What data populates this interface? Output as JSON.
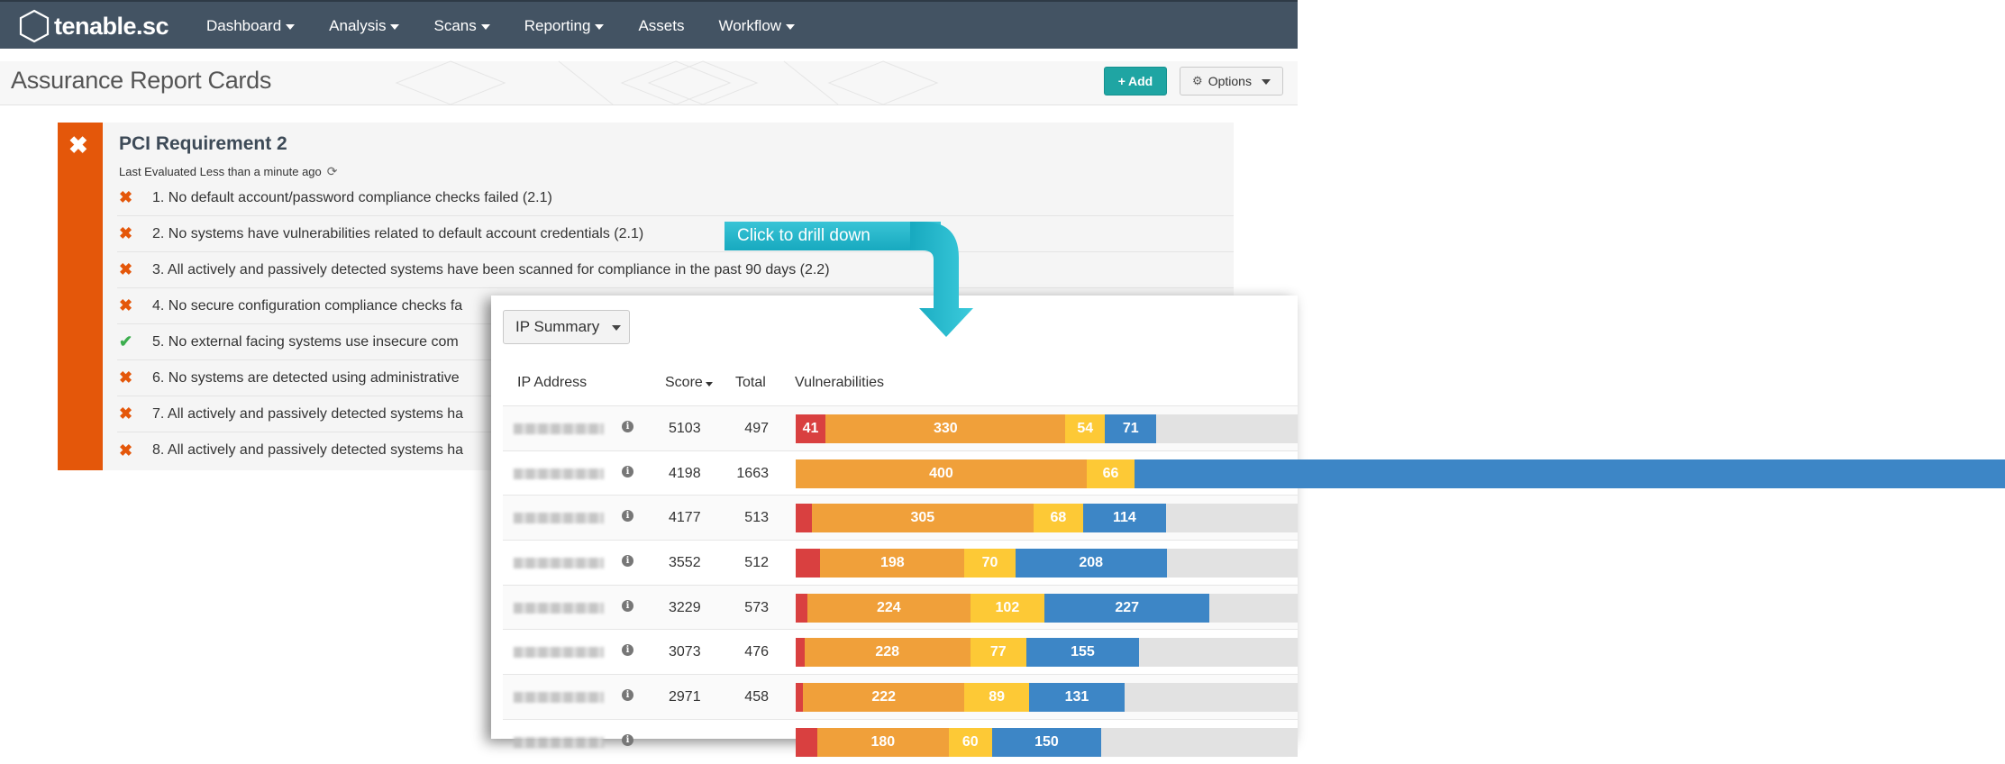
{
  "header": {
    "logo_text": "tenable.sc",
    "nav": [
      {
        "label": "Dashboard",
        "dropdown": true
      },
      {
        "label": "Analysis",
        "dropdown": true
      },
      {
        "label": "Scans",
        "dropdown": true
      },
      {
        "label": "Reporting",
        "dropdown": true
      },
      {
        "label": "Assets",
        "dropdown": false
      },
      {
        "label": "Workflow",
        "dropdown": true
      }
    ]
  },
  "page": {
    "title": "Assurance Report Cards",
    "add_label": "Add",
    "options_label": "Options"
  },
  "card": {
    "title": "PCI Requirement 2",
    "last_evaluated": "Last Evaluated Less than a minute ago",
    "requirements": [
      {
        "status": "fail",
        "text": "1. No default account/password compliance checks failed (2.1)"
      },
      {
        "status": "fail",
        "text": "2. No systems have vulnerabilities related to default account credentials (2.1)"
      },
      {
        "status": "fail",
        "text": "3. All actively and passively detected systems have been scanned for compliance in the past 90 days (2.2)"
      },
      {
        "status": "fail",
        "text": "4. No secure configuration compliance checks fa"
      },
      {
        "status": "pass",
        "text": "5. No external facing systems use insecure com"
      },
      {
        "status": "fail",
        "text": "6. No systems are detected using administrative"
      },
      {
        "status": "fail",
        "text": "7. All actively and passively detected systems ha"
      },
      {
        "status": "fail",
        "text": "8. All actively and passively detected systems ha"
      }
    ]
  },
  "callout": {
    "text": "Click to drill down"
  },
  "drilldown": {
    "tool_label": "IP Summary",
    "columns": {
      "ip": "IP Address",
      "score": "Score",
      "total": "Total",
      "vulns": "Vulnerabilities"
    },
    "colors": {
      "critical": "#d94040",
      "high": "#f0a03a",
      "medium": "#fdc936",
      "low": "#3d86c6",
      "info": "#e2e2e2"
    },
    "max_total": 690,
    "rows": [
      {
        "score": "5103",
        "total": "497",
        "segments": [
          {
            "level": "critical",
            "value": 41,
            "label": "41"
          },
          {
            "level": "high",
            "value": 330,
            "label": "330"
          },
          {
            "level": "medium",
            "value": 54,
            "label": "54"
          },
          {
            "level": "low",
            "value": 71,
            "label": "71"
          }
        ]
      },
      {
        "score": "4198",
        "total": "1663",
        "segments": [
          {
            "level": "critical",
            "value": 0,
            "label": ""
          },
          {
            "level": "high",
            "value": 400,
            "label": "400"
          },
          {
            "level": "medium",
            "value": 66,
            "label": "66"
          },
          {
            "level": "low",
            "value": 1197,
            "label": ""
          }
        ]
      },
      {
        "score": "4177",
        "total": "513",
        "segments": [
          {
            "level": "critical",
            "value": 22,
            "label": ""
          },
          {
            "level": "high",
            "value": 305,
            "label": "305"
          },
          {
            "level": "medium",
            "value": 68,
            "label": "68"
          },
          {
            "level": "low",
            "value": 114,
            "label": "114"
          }
        ]
      },
      {
        "score": "3552",
        "total": "512",
        "segments": [
          {
            "level": "critical",
            "value": 34,
            "label": ""
          },
          {
            "level": "high",
            "value": 198,
            "label": "198"
          },
          {
            "level": "medium",
            "value": 70,
            "label": "70"
          },
          {
            "level": "low",
            "value": 208,
            "label": "208"
          }
        ]
      },
      {
        "score": "3229",
        "total": "573",
        "segments": [
          {
            "level": "critical",
            "value": 16,
            "label": ""
          },
          {
            "level": "high",
            "value": 224,
            "label": "224"
          },
          {
            "level": "medium",
            "value": 102,
            "label": "102"
          },
          {
            "level": "low",
            "value": 227,
            "label": "227"
          }
        ]
      },
      {
        "score": "3073",
        "total": "476",
        "segments": [
          {
            "level": "critical",
            "value": 12,
            "label": ""
          },
          {
            "level": "high",
            "value": 228,
            "label": "228"
          },
          {
            "level": "medium",
            "value": 77,
            "label": "77"
          },
          {
            "level": "low",
            "value": 155,
            "label": "155"
          }
        ]
      },
      {
        "score": "2971",
        "total": "458",
        "segments": [
          {
            "level": "critical",
            "value": 10,
            "label": ""
          },
          {
            "level": "high",
            "value": 222,
            "label": "222"
          },
          {
            "level": "medium",
            "value": 89,
            "label": "89"
          },
          {
            "level": "low",
            "value": 131,
            "label": "131"
          }
        ]
      },
      {
        "score": "",
        "total": "",
        "segments": [
          {
            "level": "critical",
            "value": 30,
            "label": ""
          },
          {
            "level": "high",
            "value": 180,
            "label": "180"
          },
          {
            "level": "medium",
            "value": 60,
            "label": "60"
          },
          {
            "level": "low",
            "value": 150,
            "label": "150"
          }
        ]
      }
    ]
  }
}
